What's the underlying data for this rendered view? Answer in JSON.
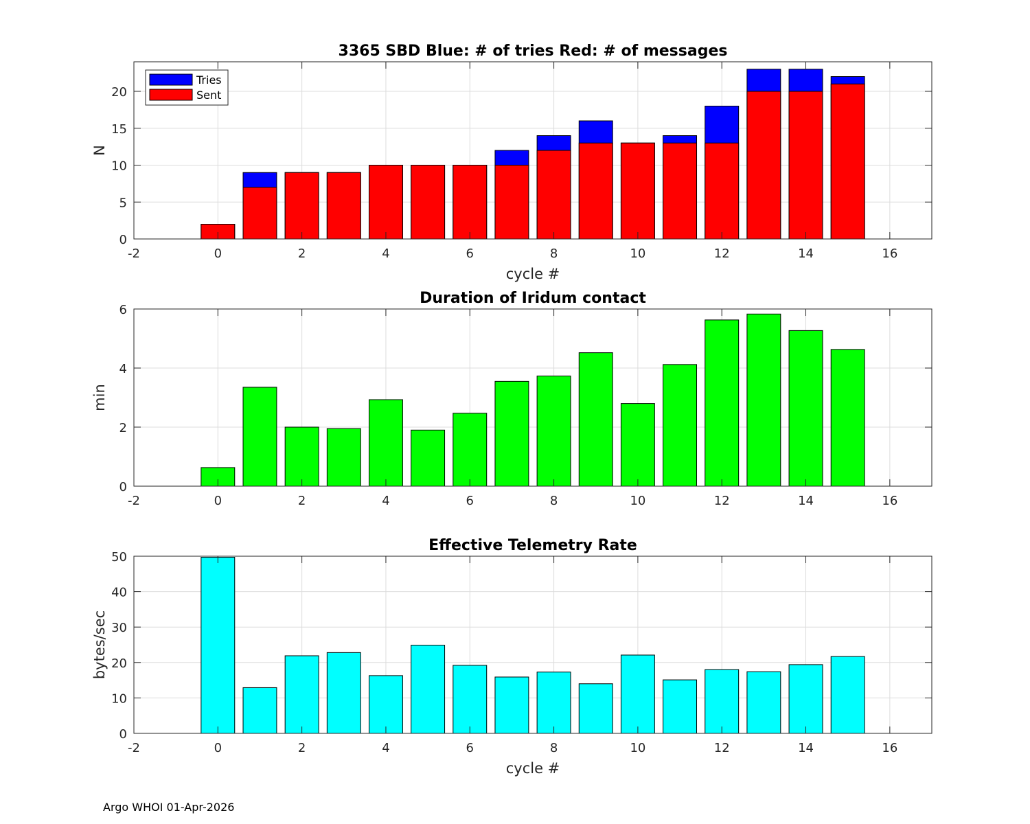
{
  "footer": "Argo WHOI 01-Apr-2026",
  "chart_data": [
    {
      "type": "bar",
      "stacked_overlay": true,
      "title": "3365 SBD  Blue: # of tries   Red: # of messages",
      "xlabel": "cycle #",
      "ylabel": "N",
      "xlim": [
        -2,
        17
      ],
      "ylim": [
        0,
        24
      ],
      "xticks": [
        -2,
        0,
        2,
        4,
        6,
        8,
        10,
        12,
        14,
        16
      ],
      "yticks": [
        0,
        5,
        10,
        15,
        20
      ],
      "x": [
        0,
        1,
        2,
        3,
        4,
        5,
        6,
        7,
        8,
        9,
        10,
        11,
        12,
        13,
        14,
        15
      ],
      "series": [
        {
          "name": "Tries",
          "color": "#0000ff",
          "values": [
            2,
            9,
            9,
            9,
            10,
            10,
            10,
            12,
            14,
            16,
            13,
            14,
            18,
            23,
            23,
            22
          ]
        },
        {
          "name": "Sent",
          "color": "#ff0000",
          "values": [
            2,
            7,
            9,
            9,
            10,
            10,
            10,
            10,
            12,
            13,
            13,
            13,
            13,
            20,
            20,
            21
          ]
        }
      ],
      "legend": [
        "Tries",
        "Sent"
      ],
      "legend_location": "top-left",
      "grid": true
    },
    {
      "type": "bar",
      "title": "Duration of Iridum contact",
      "xlabel": "",
      "ylabel": "min",
      "xlim": [
        -2,
        17
      ],
      "ylim": [
        0,
        6
      ],
      "xticks": [
        -2,
        0,
        2,
        4,
        6,
        8,
        10,
        12,
        14,
        16
      ],
      "yticks": [
        0,
        2,
        4,
        6
      ],
      "x": [
        0,
        1,
        2,
        3,
        4,
        5,
        6,
        7,
        8,
        9,
        10,
        11,
        12,
        13,
        14,
        15
      ],
      "series": [
        {
          "name": "duration",
          "color": "#00ff00",
          "values": [
            0.63,
            3.35,
            2.0,
            1.95,
            2.93,
            1.9,
            2.47,
            3.55,
            3.73,
            4.52,
            2.8,
            4.12,
            5.63,
            5.83,
            5.27,
            4.63
          ]
        }
      ],
      "grid": true
    },
    {
      "type": "bar",
      "title": "Effective Telemetry Rate",
      "xlabel": "cycle #",
      "ylabel": "bytes/sec",
      "xlim": [
        -2,
        17
      ],
      "ylim": [
        0,
        50
      ],
      "xticks": [
        -2,
        0,
        2,
        4,
        6,
        8,
        10,
        12,
        14,
        16
      ],
      "yticks": [
        0,
        10,
        20,
        30,
        40,
        50
      ],
      "x": [
        0,
        1,
        2,
        3,
        4,
        5,
        6,
        7,
        8,
        9,
        10,
        11,
        12,
        13,
        14,
        15
      ],
      "series": [
        {
          "name": "rate",
          "color": "#00ffff",
          "values": [
            49.7,
            12.9,
            21.9,
            22.8,
            16.3,
            24.9,
            19.2,
            15.9,
            17.3,
            14.0,
            22.1,
            15.1,
            18.0,
            17.4,
            19.4,
            21.7
          ]
        }
      ],
      "grid": true
    }
  ]
}
